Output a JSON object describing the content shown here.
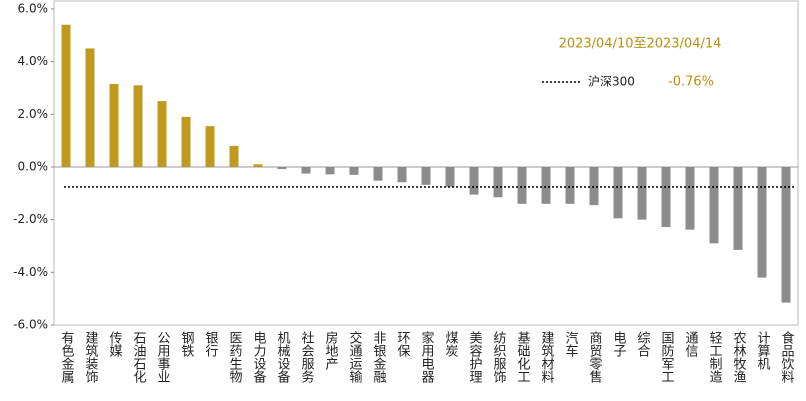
{
  "chart_data": {
    "type": "bar",
    "annotation": "2023/04/10至2023/04/14",
    "categories": [
      "有色金属",
      "建筑装饰",
      "传媒",
      "石油石化",
      "公用事业",
      "钢铁",
      "银行",
      "医药生物",
      "电力设备",
      "机械设备",
      "社会服务",
      "房地产",
      "交通运输",
      "非银金融",
      "环保",
      "家用电器",
      "煤炭",
      "美容护理",
      "纺织服饰",
      "基础化工",
      "建筑材料",
      "汽车",
      "商贸零售",
      "电子",
      "综合",
      "国防军工",
      "通信",
      "轻工制造",
      "农林牧渔",
      "计算机",
      "食品饮料"
    ],
    "values": [
      5.4,
      4.5,
      3.15,
      3.1,
      2.5,
      1.9,
      1.55,
      0.8,
      0.1,
      -0.08,
      -0.25,
      -0.28,
      -0.3,
      -0.52,
      -0.58,
      -0.68,
      -0.75,
      -1.05,
      -1.15,
      -1.4,
      -1.4,
      -1.4,
      -1.45,
      -1.95,
      -2.0,
      -2.28,
      -2.38,
      -2.9,
      -3.15,
      -4.2,
      -5.15
    ],
    "positive_color": "#c09a1f",
    "negative_color": "#8c8c8c",
    "reference_line": {
      "name": "沪深300",
      "value": -0.76,
      "value_label": "-0.76%",
      "color": "#000000"
    },
    "ylim": [
      -6,
      6.3
    ],
    "yticks": [
      {
        "value": -6,
        "label": "-6.0%"
      },
      {
        "value": -4,
        "label": "-4.0%"
      },
      {
        "value": -2,
        "label": "-2.0%"
      },
      {
        "value": 0,
        "label": "0.0%"
      },
      {
        "value": 2,
        "label": "2.0%"
      },
      {
        "value": 4,
        "label": "4.0%"
      },
      {
        "value": 6,
        "label": "6.0%"
      }
    ],
    "grid": false
  }
}
